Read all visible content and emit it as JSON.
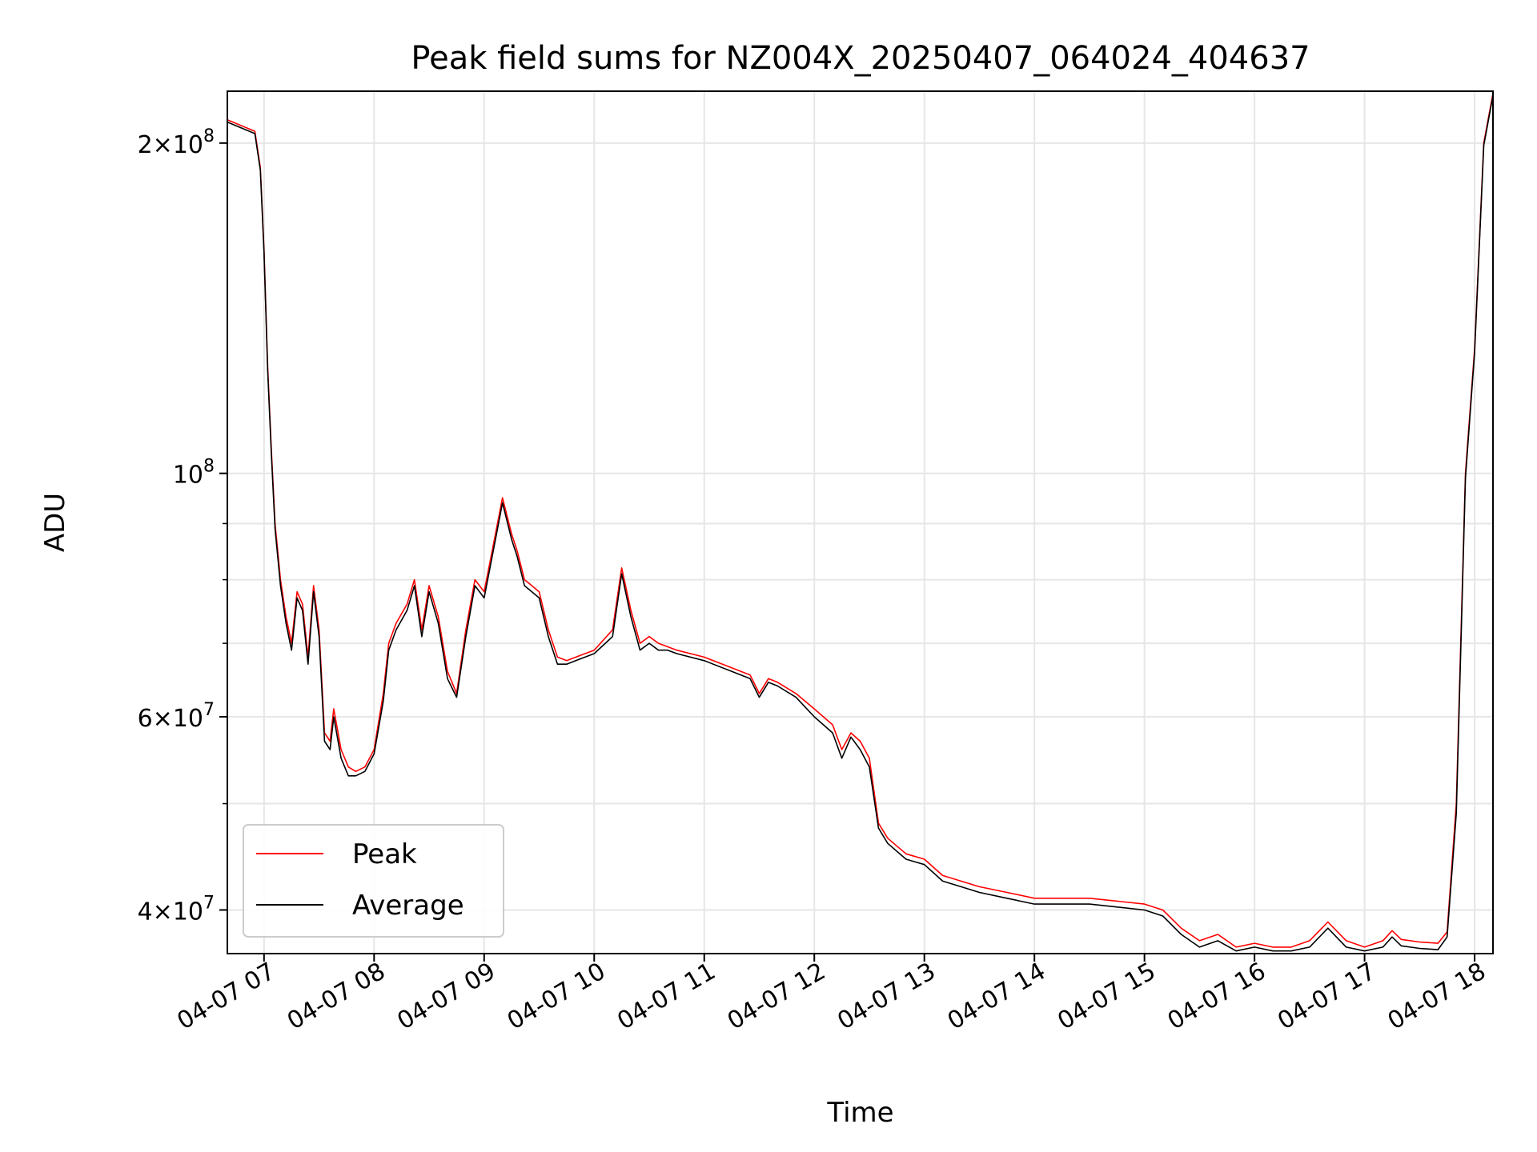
{
  "chart_data": {
    "type": "line",
    "title": "Peak field sums for NZ004X_20250407_064024_404637",
    "xlabel": "Time",
    "ylabel": "ADU",
    "xlim": [
      "2025-04-07 06:40",
      "2025-04-07 18:10"
    ],
    "ylim": [
      36500000,
      223000000
    ],
    "yscale": "log",
    "grid": true,
    "legend": "lower-left",
    "x_ticks": [
      "04-07 07",
      "04-07 08",
      "04-07 09",
      "04-07 10",
      "04-07 11",
      "04-07 12",
      "04-07 13",
      "04-07 14",
      "04-07 15",
      "04-07 16",
      "04-07 17",
      "04-07 18"
    ],
    "y_ticks": [
      {
        "value": 40000000,
        "mantissa": "4",
        "exp": "7"
      },
      {
        "value": 60000000,
        "mantissa": "6",
        "exp": "7"
      },
      {
        "value": 100000000,
        "mantissa": "",
        "exp": "8"
      },
      {
        "value": 200000000,
        "mantissa": "2",
        "exp": "8"
      }
    ],
    "series": [
      {
        "name": "Peak",
        "color": "#ff0000",
        "x": [
          "2025-04-07 06:40",
          "2025-04-07 06:55",
          "2025-04-07 06:58",
          "2025-04-07 07:00",
          "2025-04-07 07:02",
          "2025-04-07 07:04",
          "2025-04-07 07:06",
          "2025-04-07 07:09",
          "2025-04-07 07:12",
          "2025-04-07 07:15",
          "2025-04-07 07:18",
          "2025-04-07 07:21",
          "2025-04-07 07:24",
          "2025-04-07 07:27",
          "2025-04-07 07:30",
          "2025-04-07 07:33",
          "2025-04-07 07:36",
          "2025-04-07 07:38",
          "2025-04-07 07:42",
          "2025-04-07 07:46",
          "2025-04-07 07:50",
          "2025-04-07 07:55",
          "2025-04-07 08:00",
          "2025-04-07 08:05",
          "2025-04-07 08:08",
          "2025-04-07 08:12",
          "2025-04-07 08:18",
          "2025-04-07 08:22",
          "2025-04-07 08:26",
          "2025-04-07 08:30",
          "2025-04-07 08:35",
          "2025-04-07 08:40",
          "2025-04-07 08:45",
          "2025-04-07 08:50",
          "2025-04-07 08:55",
          "2025-04-07 09:00",
          "2025-04-07 09:05",
          "2025-04-07 09:10",
          "2025-04-07 09:15",
          "2025-04-07 09:18",
          "2025-04-07 09:22",
          "2025-04-07 09:26",
          "2025-04-07 09:30",
          "2025-04-07 09:35",
          "2025-04-07 09:40",
          "2025-04-07 09:45",
          "2025-04-07 09:50",
          "2025-04-07 09:55",
          "2025-04-07 10:00",
          "2025-04-07 10:10",
          "2025-04-07 10:15",
          "2025-04-07 10:20",
          "2025-04-07 10:25",
          "2025-04-07 10:30",
          "2025-04-07 10:35",
          "2025-04-07 10:40",
          "2025-04-07 10:45",
          "2025-04-07 11:00",
          "2025-04-07 11:15",
          "2025-04-07 11:25",
          "2025-04-07 11:30",
          "2025-04-07 11:35",
          "2025-04-07 11:40",
          "2025-04-07 11:50",
          "2025-04-07 12:00",
          "2025-04-07 12:10",
          "2025-04-07 12:15",
          "2025-04-07 12:20",
          "2025-04-07 12:25",
          "2025-04-07 12:30",
          "2025-04-07 12:35",
          "2025-04-07 12:40",
          "2025-04-07 12:50",
          "2025-04-07 13:00",
          "2025-04-07 13:10",
          "2025-04-07 13:20",
          "2025-04-07 13:30",
          "2025-04-07 13:45",
          "2025-04-07 14:00",
          "2025-04-07 14:30",
          "2025-04-07 15:00",
          "2025-04-07 15:10",
          "2025-04-07 15:20",
          "2025-04-07 15:30",
          "2025-04-07 15:40",
          "2025-04-07 15:50",
          "2025-04-07 16:00",
          "2025-04-07 16:10",
          "2025-04-07 16:20",
          "2025-04-07 16:30",
          "2025-04-07 16:40",
          "2025-04-07 16:50",
          "2025-04-07 17:00",
          "2025-04-07 17:10",
          "2025-04-07 17:15",
          "2025-04-07 17:20",
          "2025-04-07 17:30",
          "2025-04-07 17:40",
          "2025-04-07 17:45",
          "2025-04-07 17:50",
          "2025-04-07 17:55",
          "2025-04-07 18:00",
          "2025-04-07 18:05",
          "2025-04-07 18:10"
        ],
        "y": [
          210000000,
          205000000,
          190000000,
          160000000,
          125000000,
          105000000,
          90000000,
          80000000,
          74000000,
          70000000,
          78000000,
          76000000,
          68000000,
          79000000,
          72000000,
          58000000,
          57000000,
          61000000,
          56000000,
          54000000,
          53500000,
          54000000,
          56000000,
          63000000,
          70000000,
          73000000,
          76000000,
          80000000,
          72000000,
          79000000,
          74000000,
          66000000,
          63000000,
          72000000,
          80000000,
          78000000,
          86000000,
          95000000,
          88000000,
          85000000,
          80000000,
          79000000,
          78000000,
          72000000,
          68000000,
          67500000,
          68000000,
          68500000,
          69000000,
          72000000,
          82000000,
          75000000,
          70000000,
          71000000,
          70000000,
          69500000,
          69000000,
          68000000,
          66500000,
          65500000,
          63000000,
          65000000,
          64500000,
          63000000,
          61000000,
          59000000,
          56000000,
          58000000,
          57000000,
          55000000,
          48000000,
          46500000,
          45000000,
          44500000,
          43000000,
          42500000,
          42000000,
          41500000,
          41000000,
          41000000,
          40500000,
          40000000,
          38500000,
          37500000,
          38000000,
          37000000,
          37300000,
          37000000,
          37000000,
          37500000,
          39000000,
          37500000,
          37000000,
          37500000,
          38300000,
          37600000,
          37400000,
          37300000,
          38200000,
          50000000,
          100000000,
          130000000,
          200000000,
          222000000
        ]
      },
      {
        "name": "Average",
        "color": "#000000",
        "x": [
          "2025-04-07 06:40",
          "2025-04-07 06:55",
          "2025-04-07 06:58",
          "2025-04-07 07:00",
          "2025-04-07 07:02",
          "2025-04-07 07:04",
          "2025-04-07 07:06",
          "2025-04-07 07:09",
          "2025-04-07 07:12",
          "2025-04-07 07:15",
          "2025-04-07 07:18",
          "2025-04-07 07:21",
          "2025-04-07 07:24",
          "2025-04-07 07:27",
          "2025-04-07 07:30",
          "2025-04-07 07:33",
          "2025-04-07 07:36",
          "2025-04-07 07:38",
          "2025-04-07 07:42",
          "2025-04-07 07:46",
          "2025-04-07 07:50",
          "2025-04-07 07:55",
          "2025-04-07 08:00",
          "2025-04-07 08:05",
          "2025-04-07 08:08",
          "2025-04-07 08:12",
          "2025-04-07 08:18",
          "2025-04-07 08:22",
          "2025-04-07 08:26",
          "2025-04-07 08:30",
          "2025-04-07 08:35",
          "2025-04-07 08:40",
          "2025-04-07 08:45",
          "2025-04-07 08:50",
          "2025-04-07 08:55",
          "2025-04-07 09:00",
          "2025-04-07 09:05",
          "2025-04-07 09:10",
          "2025-04-07 09:15",
          "2025-04-07 09:18",
          "2025-04-07 09:22",
          "2025-04-07 09:26",
          "2025-04-07 09:30",
          "2025-04-07 09:35",
          "2025-04-07 09:40",
          "2025-04-07 09:45",
          "2025-04-07 09:50",
          "2025-04-07 09:55",
          "2025-04-07 10:00",
          "2025-04-07 10:10",
          "2025-04-07 10:15",
          "2025-04-07 10:20",
          "2025-04-07 10:25",
          "2025-04-07 10:30",
          "2025-04-07 10:35",
          "2025-04-07 10:40",
          "2025-04-07 10:45",
          "2025-04-07 11:00",
          "2025-04-07 11:15",
          "2025-04-07 11:25",
          "2025-04-07 11:30",
          "2025-04-07 11:35",
          "2025-04-07 11:40",
          "2025-04-07 11:50",
          "2025-04-07 12:00",
          "2025-04-07 12:10",
          "2025-04-07 12:15",
          "2025-04-07 12:20",
          "2025-04-07 12:25",
          "2025-04-07 12:30",
          "2025-04-07 12:35",
          "2025-04-07 12:40",
          "2025-04-07 12:50",
          "2025-04-07 13:00",
          "2025-04-07 13:10",
          "2025-04-07 13:20",
          "2025-04-07 13:30",
          "2025-04-07 13:45",
          "2025-04-07 14:00",
          "2025-04-07 14:30",
          "2025-04-07 15:00",
          "2025-04-07 15:10",
          "2025-04-07 15:20",
          "2025-04-07 15:30",
          "2025-04-07 15:40",
          "2025-04-07 15:50",
          "2025-04-07 16:00",
          "2025-04-07 16:10",
          "2025-04-07 16:20",
          "2025-04-07 16:30",
          "2025-04-07 16:40",
          "2025-04-07 16:50",
          "2025-04-07 17:00",
          "2025-04-07 17:10",
          "2025-04-07 17:15",
          "2025-04-07 17:20",
          "2025-04-07 17:30",
          "2025-04-07 17:40",
          "2025-04-07 17:45",
          "2025-04-07 17:50",
          "2025-04-07 17:55",
          "2025-04-07 18:00",
          "2025-04-07 18:05",
          "2025-04-07 18:10"
        ],
        "y": [
          209000000,
          204000000,
          189000000,
          159000000,
          124000000,
          104000000,
          89000000,
          79000000,
          73000000,
          69000000,
          77000000,
          75000000,
          67000000,
          78000000,
          71000000,
          57000000,
          56000000,
          60000000,
          55000000,
          53000000,
          53000000,
          53500000,
          55500000,
          62000000,
          69000000,
          72000000,
          75000000,
          79000000,
          71000000,
          78000000,
          73000000,
          65000000,
          62500000,
          71000000,
          79000000,
          77000000,
          85000000,
          94000000,
          87000000,
          84000000,
          79000000,
          78000000,
          77000000,
          71000000,
          67000000,
          67000000,
          67500000,
          68000000,
          68500000,
          71000000,
          81000000,
          74000000,
          69000000,
          70000000,
          69000000,
          69000000,
          68500000,
          67500000,
          66000000,
          65000000,
          62500000,
          64500000,
          64000000,
          62500000,
          60000000,
          58000000,
          55000000,
          57500000,
          56000000,
          54000000,
          47500000,
          46000000,
          44500000,
          44000000,
          42500000,
          42000000,
          41500000,
          41000000,
          40500000,
          40500000,
          40000000,
          39500000,
          38000000,
          37000000,
          37500000,
          36700000,
          37000000,
          36700000,
          36700000,
          37000000,
          38500000,
          37000000,
          36700000,
          37000000,
          37800000,
          37100000,
          36900000,
          36800000,
          37800000,
          49000000,
          99000000,
          129000000,
          199000000,
          221000000
        ]
      }
    ]
  }
}
